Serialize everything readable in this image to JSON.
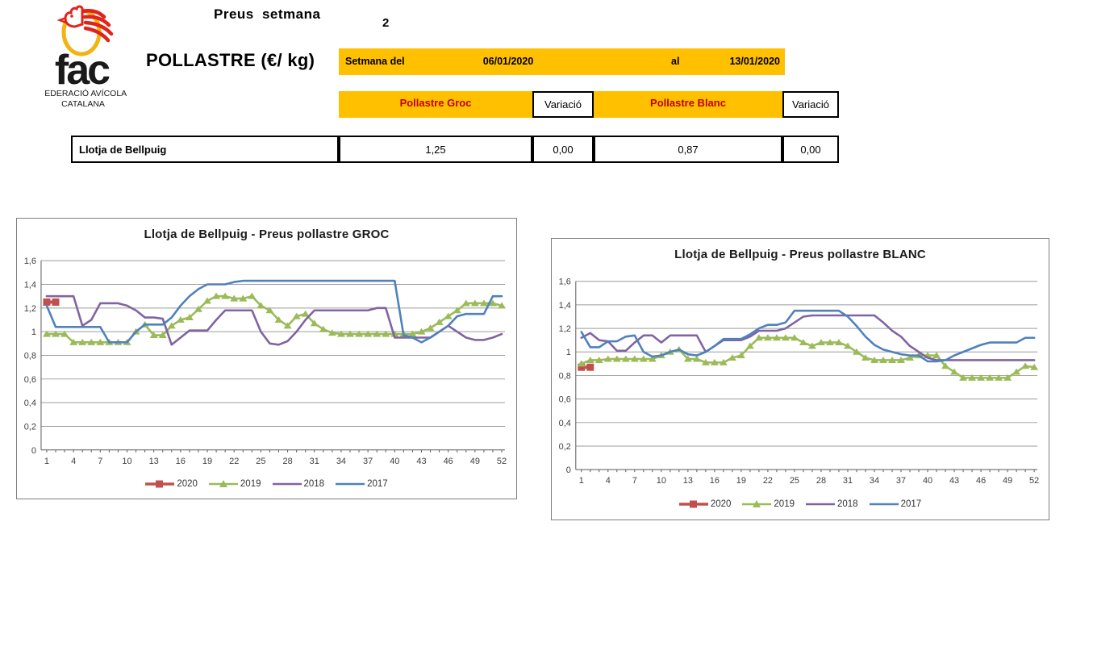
{
  "logo": {
    "acronym": "fac",
    "org_line1": "FEDERACIÓ AVÍCOLA",
    "org_line2": "CATALANA",
    "egg_color": "#F2B411",
    "rooster_color": "#E2231A"
  },
  "header": {
    "week_label": "Preus setmana",
    "week_number": "2",
    "product_title": "POLLASTRE (€/ kg)",
    "period": {
      "label": "Setmana del",
      "from": "06/01/2020",
      "al_label": "al",
      "to": "13/01/2020"
    }
  },
  "table": {
    "columns": [
      "Pollastre Groc",
      "Variació",
      "Pollastre Blanc",
      "Variació"
    ],
    "rows": [
      {
        "name": "Llotja de Bellpuig",
        "values": [
          "1,25",
          "0,00",
          "0,87",
          "0,00"
        ]
      }
    ]
  },
  "colors": {
    "accent_yellow": "#FFC000",
    "header_text_red": "#C00000",
    "series_2020": "#C0504D",
    "series_2019": "#9BBB59",
    "series_2018": "#8064A2",
    "series_2017": "#4F81BD",
    "gridline": "#9c9c9c",
    "axis": "#595959"
  },
  "chart_data": [
    {
      "type": "line",
      "title": "Llotja de Bellpuig - Preus pollastre GROC",
      "xlabel": "",
      "ylabel": "",
      "weeks": 52,
      "ylim": [
        0,
        1.6
      ],
      "grid": true,
      "legend_position": "bottom",
      "y_tick_labels": [
        "0",
        "0,2",
        "0,4",
        "0,6",
        "0,8",
        "1",
        "1,2",
        "1,4",
        "1,6"
      ],
      "x_tick_labels": [
        "1",
        "4",
        "7",
        "10",
        "13",
        "16",
        "19",
        "22",
        "25",
        "28",
        "31",
        "34",
        "37",
        "40",
        "43",
        "46",
        "49",
        "52"
      ],
      "series": [
        {
          "name": "2020",
          "color": "#C0504D",
          "marker": "square",
          "values": [
            1.25,
            1.25
          ]
        },
        {
          "name": "2019",
          "color": "#9BBB59",
          "marker": "triangle",
          "values": [
            0.98,
            0.98,
            0.98,
            0.91,
            0.91,
            0.91,
            0.91,
            0.91,
            0.91,
            0.91,
            1.0,
            1.06,
            0.97,
            0.97,
            1.05,
            1.1,
            1.12,
            1.19,
            1.26,
            1.3,
            1.3,
            1.28,
            1.28,
            1.3,
            1.22,
            1.18,
            1.1,
            1.05,
            1.13,
            1.15,
            1.07,
            1.02,
            0.99,
            0.98,
            0.98,
            0.98,
            0.98,
            0.98,
            0.98,
            0.98,
            0.98,
            0.98,
            1.0,
            1.03,
            1.08,
            1.13,
            1.18,
            1.24,
            1.24,
            1.24,
            1.24,
            1.22
          ]
        },
        {
          "name": "2018",
          "color": "#8064A2",
          "marker": "none",
          "values": [
            1.3,
            1.3,
            1.3,
            1.3,
            1.05,
            1.1,
            1.24,
            1.24,
            1.24,
            1.22,
            1.18,
            1.12,
            1.12,
            1.11,
            0.89,
            0.95,
            1.01,
            1.01,
            1.01,
            1.1,
            1.18,
            1.18,
            1.18,
            1.18,
            1.0,
            0.9,
            0.89,
            0.92,
            1.0,
            1.1,
            1.18,
            1.18,
            1.18,
            1.18,
            1.18,
            1.18,
            1.18,
            1.2,
            1.2,
            0.95,
            0.95,
            0.95,
            0.95,
            0.95,
            1.0,
            1.05,
            1.0,
            0.95,
            0.93,
            0.93,
            0.95,
            0.98
          ]
        },
        {
          "name": "2017",
          "color": "#4F81BD",
          "marker": "none",
          "values": [
            1.22,
            1.04,
            1.04,
            1.04,
            1.04,
            1.04,
            1.04,
            0.91,
            0.91,
            0.91,
            1.0,
            1.06,
            1.06,
            1.06,
            1.12,
            1.22,
            1.3,
            1.36,
            1.4,
            1.4,
            1.4,
            1.42,
            1.43,
            1.43,
            1.43,
            1.43,
            1.43,
            1.43,
            1.43,
            1.43,
            1.43,
            1.43,
            1.43,
            1.43,
            1.43,
            1.43,
            1.43,
            1.43,
            1.43,
            1.43,
            0.97,
            0.95,
            0.91,
            0.95,
            1.0,
            1.05,
            1.13,
            1.15,
            1.15,
            1.15,
            1.3,
            1.3
          ]
        }
      ]
    },
    {
      "type": "line",
      "title": "Llotja de Bellpuig - Preus pollastre BLANC",
      "xlabel": "",
      "ylabel": "",
      "weeks": 52,
      "ylim": [
        0,
        1.6
      ],
      "grid": true,
      "legend_position": "bottom",
      "y_tick_labels": [
        "0",
        "0,2",
        "0,4",
        "0,6",
        "0,8",
        "1",
        "1,2",
        "1,4",
        "1,6"
      ],
      "x_tick_labels": [
        "1",
        "4",
        "7",
        "10",
        "13",
        "16",
        "19",
        "22",
        "25",
        "28",
        "31",
        "34",
        "37",
        "40",
        "43",
        "46",
        "49",
        "52"
      ],
      "series": [
        {
          "name": "2020",
          "color": "#C0504D",
          "marker": "square",
          "values": [
            0.87,
            0.87
          ]
        },
        {
          "name": "2019",
          "color": "#9BBB59",
          "marker": "triangle",
          "values": [
            0.9,
            0.93,
            0.93,
            0.94,
            0.94,
            0.94,
            0.94,
            0.94,
            0.94,
            0.97,
            1.0,
            1.02,
            0.94,
            0.94,
            0.91,
            0.91,
            0.91,
            0.95,
            0.97,
            1.05,
            1.12,
            1.12,
            1.12,
            1.12,
            1.12,
            1.08,
            1.05,
            1.08,
            1.08,
            1.08,
            1.05,
            1.0,
            0.95,
            0.93,
            0.93,
            0.93,
            0.93,
            0.95,
            0.97,
            0.97,
            0.97,
            0.88,
            0.83,
            0.78,
            0.78,
            0.78,
            0.78,
            0.78,
            0.78,
            0.83,
            0.88,
            0.87
          ]
        },
        {
          "name": "2018",
          "color": "#8064A2",
          "marker": "none",
          "values": [
            1.12,
            1.16,
            1.1,
            1.09,
            1.01,
            1.01,
            1.08,
            1.14,
            1.14,
            1.08,
            1.14,
            1.14,
            1.14,
            1.14,
            1.0,
            1.05,
            1.1,
            1.1,
            1.1,
            1.13,
            1.18,
            1.18,
            1.18,
            1.2,
            1.25,
            1.3,
            1.31,
            1.31,
            1.31,
            1.31,
            1.31,
            1.31,
            1.31,
            1.31,
            1.25,
            1.18,
            1.13,
            1.05,
            1.0,
            0.95,
            0.93,
            0.93,
            0.93,
            0.93,
            0.93,
            0.93,
            0.93,
            0.93,
            0.93,
            0.93,
            0.93,
            0.93
          ]
        },
        {
          "name": "2017",
          "color": "#4F81BD",
          "marker": "none",
          "values": [
            1.17,
            1.04,
            1.04,
            1.09,
            1.09,
            1.13,
            1.14,
            1.0,
            0.96,
            0.97,
            1.0,
            1.02,
            0.98,
            0.97,
            1.0,
            1.05,
            1.11,
            1.11,
            1.11,
            1.15,
            1.2,
            1.23,
            1.23,
            1.25,
            1.35,
            1.35,
            1.35,
            1.35,
            1.35,
            1.35,
            1.3,
            1.22,
            1.13,
            1.06,
            1.02,
            1.0,
            0.98,
            0.97,
            0.97,
            0.92,
            0.92,
            0.93,
            0.97,
            1.0,
            1.03,
            1.06,
            1.08,
            1.08,
            1.08,
            1.08,
            1.12,
            1.12
          ]
        }
      ]
    }
  ]
}
